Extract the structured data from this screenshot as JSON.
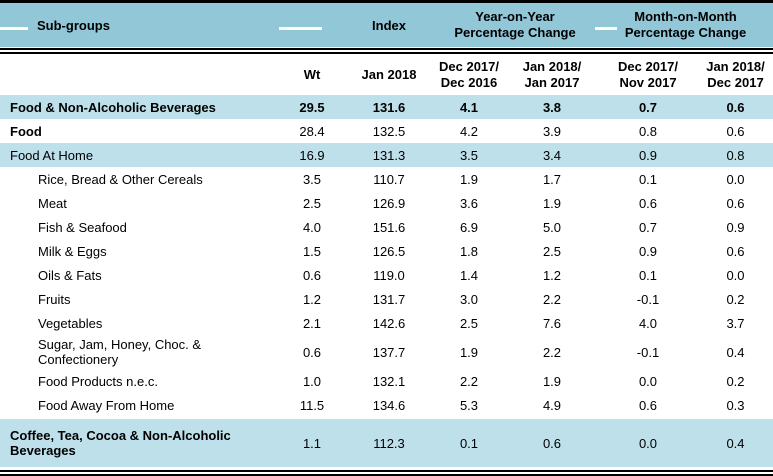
{
  "colors": {
    "header_bg": "#92C7D8",
    "shaded_row_bg": "#BEE0EB",
    "rule": "#000000",
    "text": "#000000"
  },
  "table": {
    "title_row": {
      "subgroups": "Sub-groups",
      "index": "Index",
      "yoy": "Year-on-Year\nPercentage Change",
      "mom": "Month-on-Month\nPercentage Change"
    },
    "subheader": {
      "wt": "Wt",
      "index_period": "Jan 2018",
      "yoy1": "Dec 2017/\nDec 2016",
      "yoy2": "Jan 2018/\nJan 2017",
      "mom1": "Dec 2017/\nNov 2017",
      "mom2": "Jan 2018/\nDec 2017"
    },
    "rows": [
      {
        "label": "Food & Non-Alcoholic Beverages",
        "wt": "29.5",
        "index": "131.6",
        "yoy1": "4.1",
        "yoy2": "3.8",
        "mom1": "0.7",
        "mom2": "0.6",
        "shaded": true,
        "bold_label": true,
        "bold_values": true,
        "indent": false,
        "tall": false,
        "xtall": false
      },
      {
        "label": "Food",
        "wt": "28.4",
        "index": "132.5",
        "yoy1": "4.2",
        "yoy2": "3.9",
        "mom1": "0.8",
        "mom2": "0.6",
        "shaded": false,
        "bold_label": true,
        "bold_values": false,
        "indent": false,
        "tall": false,
        "xtall": false
      },
      {
        "label": "Food At Home",
        "wt": "16.9",
        "index": "131.3",
        "yoy1": "3.5",
        "yoy2": "3.4",
        "mom1": "0.9",
        "mom2": "0.8",
        "shaded": true,
        "bold_label": false,
        "bold_values": false,
        "indent": false,
        "tall": false,
        "xtall": false
      },
      {
        "label": "Rice, Bread & Other Cereals",
        "wt": "3.5",
        "index": "110.7",
        "yoy1": "1.9",
        "yoy2": "1.7",
        "mom1": "0.1",
        "mom2": "0.0",
        "shaded": false,
        "bold_label": false,
        "bold_values": false,
        "indent": true,
        "tall": false,
        "xtall": false
      },
      {
        "label": "Meat",
        "wt": "2.5",
        "index": "126.9",
        "yoy1": "3.6",
        "yoy2": "1.9",
        "mom1": "0.6",
        "mom2": "0.6",
        "shaded": false,
        "bold_label": false,
        "bold_values": false,
        "indent": true,
        "tall": false,
        "xtall": false
      },
      {
        "label": "Fish & Seafood",
        "wt": "4.0",
        "index": "151.6",
        "yoy1": "6.9",
        "yoy2": "5.0",
        "mom1": "0.7",
        "mom2": "0.9",
        "shaded": false,
        "bold_label": false,
        "bold_values": false,
        "indent": true,
        "tall": false,
        "xtall": false
      },
      {
        "label": "Milk & Eggs",
        "wt": "1.5",
        "index": "126.5",
        "yoy1": "1.8",
        "yoy2": "2.5",
        "mom1": "0.9",
        "mom2": "0.6",
        "shaded": false,
        "bold_label": false,
        "bold_values": false,
        "indent": true,
        "tall": false,
        "xtall": false
      },
      {
        "label": "Oils & Fats",
        "wt": "0.6",
        "index": "119.0",
        "yoy1": "1.4",
        "yoy2": "1.2",
        "mom1": "0.1",
        "mom2": "0.0",
        "shaded": false,
        "bold_label": false,
        "bold_values": false,
        "indent": true,
        "tall": false,
        "xtall": false
      },
      {
        "label": "Fruits",
        "wt": "1.2",
        "index": "131.7",
        "yoy1": "3.0",
        "yoy2": "2.2",
        "mom1": "-0.1",
        "mom2": "0.2",
        "shaded": false,
        "bold_label": false,
        "bold_values": false,
        "indent": true,
        "tall": false,
        "xtall": false
      },
      {
        "label": "Vegetables",
        "wt": "2.1",
        "index": "142.6",
        "yoy1": "2.5",
        "yoy2": "7.6",
        "mom1": "4.0",
        "mom2": "3.7",
        "shaded": false,
        "bold_label": false,
        "bold_values": false,
        "indent": true,
        "tall": false,
        "xtall": false
      },
      {
        "label": "Sugar, Jam, Honey, Choc. & Confectionery",
        "wt": "0.6",
        "index": "137.7",
        "yoy1": "1.9",
        "yoy2": "2.2",
        "mom1": "-0.1",
        "mom2": "0.4",
        "shaded": false,
        "bold_label": false,
        "bold_values": false,
        "indent": true,
        "tall": true,
        "xtall": false
      },
      {
        "label": "Food Products n.e.c.",
        "wt": "1.0",
        "index": "132.1",
        "yoy1": "2.2",
        "yoy2": "1.9",
        "mom1": "0.0",
        "mom2": "0.2",
        "shaded": false,
        "bold_label": false,
        "bold_values": false,
        "indent": true,
        "tall": false,
        "xtall": false
      },
      {
        "label": "Food Away From Home",
        "wt": "11.5",
        "index": "134.6",
        "yoy1": "5.3",
        "yoy2": "4.9",
        "mom1": "0.6",
        "mom2": "0.3",
        "shaded": false,
        "bold_label": false,
        "bold_values": false,
        "indent": true,
        "tall": false,
        "xtall": false
      },
      {
        "label": "Coffee, Tea, Cocoa & Non-Alcoholic Beverages",
        "wt": "1.1",
        "index": "112.3",
        "yoy1": "0.1",
        "yoy2": "0.6",
        "mom1": "0.0",
        "mom2": "0.4",
        "shaded": true,
        "bold_label": true,
        "bold_values": false,
        "indent": false,
        "tall": false,
        "xtall": true
      }
    ]
  },
  "chart_data": {
    "type": "table",
    "title": "Food sub-groups: Index and Percentage Change",
    "columns": [
      "Sub-groups",
      "Wt",
      "Index Jan 2018",
      "Year-on-Year % Change Dec 2017/Dec 2016",
      "Year-on-Year % Change Jan 2018/Jan 2017",
      "Month-on-Month % Change Dec 2017/Nov 2017",
      "Month-on-Month % Change Jan 2018/Dec 2017"
    ],
    "rows": [
      [
        "Food & Non-Alcoholic Beverages",
        29.5,
        131.6,
        4.1,
        3.8,
        0.7,
        0.6
      ],
      [
        "Food",
        28.4,
        132.5,
        4.2,
        3.9,
        0.8,
        0.6
      ],
      [
        "Food At Home",
        16.9,
        131.3,
        3.5,
        3.4,
        0.9,
        0.8
      ],
      [
        "Rice, Bread & Other Cereals",
        3.5,
        110.7,
        1.9,
        1.7,
        0.1,
        0.0
      ],
      [
        "Meat",
        2.5,
        126.9,
        3.6,
        1.9,
        0.6,
        0.6
      ],
      [
        "Fish & Seafood",
        4.0,
        151.6,
        6.9,
        5.0,
        0.7,
        0.9
      ],
      [
        "Milk & Eggs",
        1.5,
        126.5,
        1.8,
        2.5,
        0.9,
        0.6
      ],
      [
        "Oils & Fats",
        0.6,
        119.0,
        1.4,
        1.2,
        0.1,
        0.0
      ],
      [
        "Fruits",
        1.2,
        131.7,
        3.0,
        2.2,
        -0.1,
        0.2
      ],
      [
        "Vegetables",
        2.1,
        142.6,
        2.5,
        7.6,
        4.0,
        3.7
      ],
      [
        "Sugar, Jam, Honey, Choc. & Confectionery",
        0.6,
        137.7,
        1.9,
        2.2,
        -0.1,
        0.4
      ],
      [
        "Food Products n.e.c.",
        1.0,
        132.1,
        2.2,
        1.9,
        0.0,
        0.2
      ],
      [
        "Food Away From Home",
        11.5,
        134.6,
        5.3,
        4.9,
        0.6,
        0.3
      ],
      [
        "Coffee, Tea, Cocoa & Non-Alcoholic Beverages",
        1.1,
        112.3,
        0.1,
        0.6,
        0.0,
        0.4
      ]
    ]
  }
}
